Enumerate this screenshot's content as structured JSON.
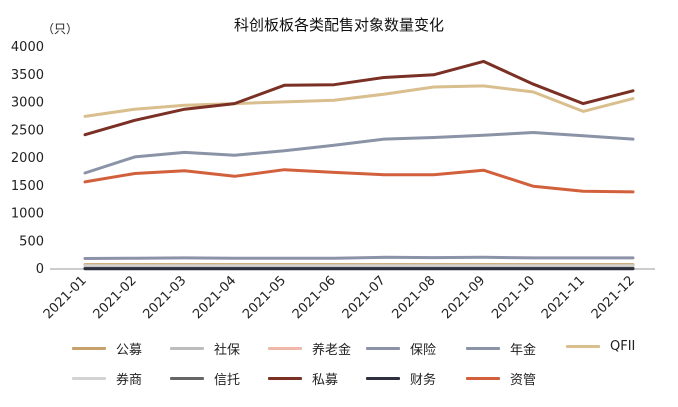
{
  "chart_data": {
    "type": "line",
    "title": "科创板板各类配售对象数量变化",
    "ylabel": "（只）",
    "xlabel": "",
    "ylim": [
      0,
      4000
    ],
    "yticks": [
      0,
      500,
      1000,
      1500,
      2000,
      2500,
      3000,
      3500,
      4000
    ],
    "categories": [
      "2021-01",
      "2021-02",
      "2021-03",
      "2021-04",
      "2021-05",
      "2021-06",
      "2021-07",
      "2021-08",
      "2021-09",
      "2021-10",
      "2021-11",
      "2021-12"
    ],
    "series": [
      {
        "name": "公募",
        "color": "#C8A26A",
        "values": [
          80,
          80,
          80,
          80,
          80,
          80,
          80,
          80,
          80,
          80,
          80,
          80
        ]
      },
      {
        "name": "社保",
        "color": "#BDBDBD",
        "values": [
          20,
          20,
          20,
          20,
          20,
          20,
          20,
          20,
          20,
          20,
          20,
          20
        ]
      },
      {
        "name": "养老金",
        "color": "#F0B8A8",
        "values": [
          40,
          40,
          40,
          40,
          40,
          40,
          40,
          40,
          40,
          40,
          40,
          40
        ]
      },
      {
        "name": "保险",
        "color": "#8C93A8",
        "values": [
          190,
          195,
          200,
          195,
          195,
          195,
          210,
          205,
          210,
          200,
          200,
          200
        ]
      },
      {
        "name": "年金",
        "color": "#8A94A6",
        "values": [
          1730,
          2020,
          2100,
          2050,
          2130,
          2230,
          2340,
          2370,
          2410,
          2460,
          2400,
          2340
        ]
      },
      {
        "name": "QFII",
        "color": "#D9BE8E",
        "values": [
          2750,
          2880,
          2950,
          2980,
          3010,
          3040,
          3150,
          3280,
          3300,
          3190,
          2840,
          3070
        ]
      },
      {
        "name": "券商",
        "color": "#D3D3D3",
        "values": [
          60,
          60,
          60,
          60,
          60,
          60,
          60,
          60,
          60,
          60,
          60,
          60
        ]
      },
      {
        "name": "信托",
        "color": "#666666",
        "values": [
          10,
          10,
          10,
          10,
          10,
          10,
          10,
          10,
          10,
          10,
          10,
          10
        ]
      },
      {
        "name": "私募",
        "color": "#7A3024",
        "values": [
          2420,
          2680,
          2880,
          2980,
          3310,
          3320,
          3450,
          3500,
          3740,
          3330,
          2980,
          3210
        ]
      },
      {
        "name": "财务",
        "color": "#2E3040",
        "values": [
          5,
          5,
          5,
          5,
          5,
          5,
          5,
          5,
          5,
          5,
          5,
          5
        ]
      },
      {
        "name": "资管",
        "color": "#D2603C",
        "values": [
          1570,
          1720,
          1770,
          1670,
          1790,
          1740,
          1700,
          1700,
          1780,
          1490,
          1400,
          1390
        ]
      }
    ],
    "legend_position": "bottom",
    "grid": false
  }
}
